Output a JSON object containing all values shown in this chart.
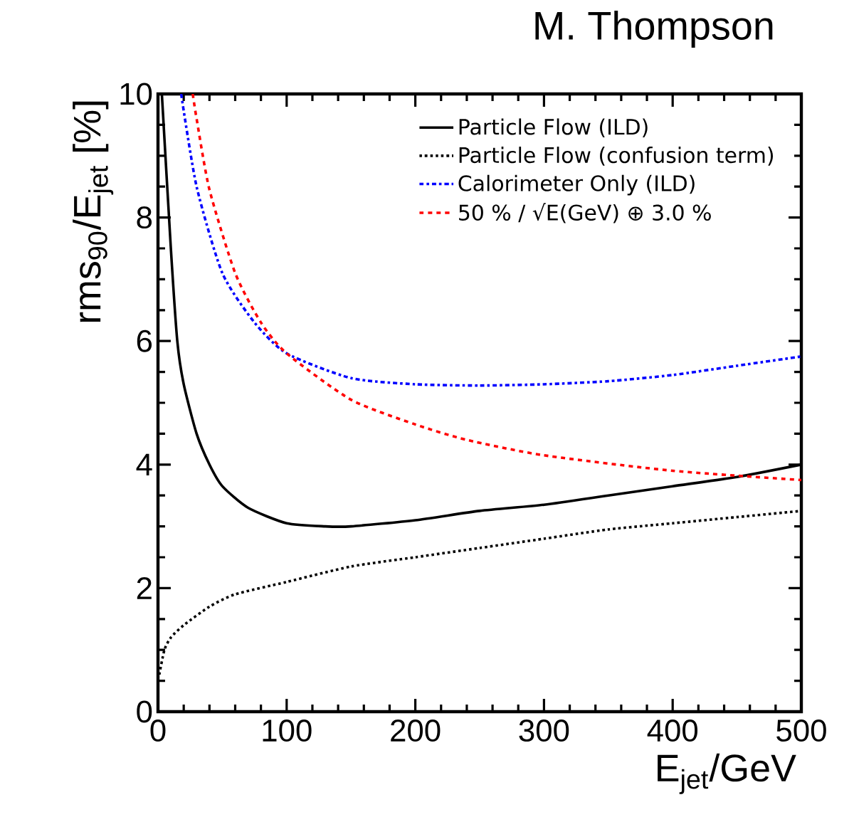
{
  "chart_data": {
    "type": "line",
    "xlabel": "E$_{jet}$/GeV",
    "ylabel": "rms$_{90}$/E$_{jet}$  [%]",
    "annotations": [
      "M. Thompson"
    ],
    "xlim": [
      0,
      500
    ],
    "ylim": [
      0,
      10
    ],
    "xticks": [
      0,
      100,
      200,
      300,
      400,
      500
    ],
    "yticks": [
      0,
      2,
      4,
      6,
      8,
      10
    ],
    "legend": "top right",
    "grid": false,
    "marker": "none",
    "series": [
      {
        "name": "Particle Flow (ILD)",
        "color": "#000000",
        "line_style": "solid",
        "x": [
          3,
          10,
          15,
          20,
          30,
          40,
          50,
          70,
          100,
          130,
          150,
          200,
          250,
          300,
          350,
          400,
          450,
          500
        ],
        "values": [
          10,
          7.5,
          6,
          5.3,
          4.5,
          4.0,
          3.65,
          3.3,
          3.05,
          3.0,
          3.0,
          3.1,
          3.25,
          3.35,
          3.5,
          3.65,
          3.8,
          4.0
        ]
      },
      {
        "name": "Particle Flow (confusion term)",
        "color": "#000000",
        "line_style": "dotted",
        "x": [
          1,
          5,
          10,
          20,
          40,
          60,
          100,
          150,
          200,
          250,
          300,
          350,
          400,
          450,
          500
        ],
        "values": [
          0.6,
          1.0,
          1.2,
          1.4,
          1.7,
          1.9,
          2.1,
          2.35,
          2.5,
          2.65,
          2.8,
          2.95,
          3.05,
          3.15,
          3.25
        ]
      },
      {
        "name": "Calorimeter Only (ILD)",
        "color": "#0000ff",
        "line_style": "dashdotted",
        "x": [
          18,
          30,
          50,
          75,
          100,
          150,
          200,
          250,
          300,
          350,
          400,
          450,
          500
        ],
        "values": [
          10,
          8.5,
          7.1,
          6.3,
          5.8,
          5.4,
          5.3,
          5.28,
          5.3,
          5.35,
          5.45,
          5.6,
          5.75
        ]
      },
      {
        "name": "50 % / √E(GeV) ⊕ 3.0 %",
        "color": "#ff0000",
        "line_style": "dashed",
        "x": [
          27,
          30,
          40,
          60,
          80,
          100,
          150,
          200,
          240,
          300,
          400,
          500
        ],
        "values": [
          10,
          9.6,
          8.45,
          7.1,
          6.3,
          5.8,
          5.05,
          4.65,
          4.4,
          4.15,
          3.9,
          3.75
        ]
      }
    ]
  }
}
